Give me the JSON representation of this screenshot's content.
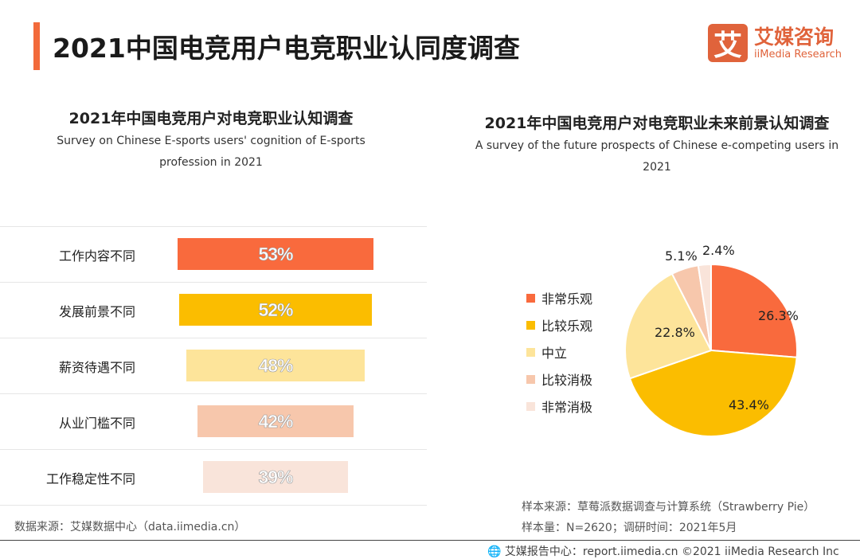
{
  "header": {
    "title": "2021中国电竞用户电竞职业认同度调查"
  },
  "logo": {
    "mark": "艾",
    "cn": "艾媒咨询",
    "en": "iiMedia Research"
  },
  "chart_data": [
    {
      "type": "bar",
      "orientation": "horizontal",
      "title": "2021年中国电竞用户对电竞职业认知调查",
      "subtitle": "Survey on Chinese E-sports users' cognition of E-sports profession in 2021",
      "categories": [
        "工作内容不同",
        "发展前景不同",
        "薪资待遇不同",
        "从业门槛不同",
        "工作稳定性不同"
      ],
      "values": [
        53,
        52,
        48,
        42,
        39
      ],
      "labels": [
        "53%",
        "52%",
        "48%",
        "42%",
        "39%"
      ],
      "colors": [
        "#f96a3d",
        "#fbbd00",
        "#fde49a",
        "#f7c7ac",
        "#f9e4da"
      ],
      "grid": true
    },
    {
      "type": "pie",
      "title": "2021年中国电竞用户对电竞职业未来前景认知调查",
      "subtitle": "A survey of the future prospects of Chinese e-competing users in 2021",
      "categories": [
        "非常乐观",
        "比较乐观",
        "中立",
        "比较消极",
        "非常消极"
      ],
      "values": [
        26.3,
        43.4,
        22.8,
        5.1,
        2.4
      ],
      "labels": [
        "26.3%",
        "43.4%",
        "22.8%",
        "5.1%",
        "2.4%"
      ],
      "colors": [
        "#f96a3d",
        "#fbbd00",
        "#fde49a",
        "#f7c7ac",
        "#f9e4da"
      ],
      "legend": "left"
    }
  ],
  "footer": {
    "source_left": "数据来源：艾媒数据中心（data.iimedia.cn）",
    "source_right": "样本来源：草莓派数据调查与计算系统（Strawberry Pie）",
    "sample": "样本量：N=2620；调研时间：2021年5月",
    "copyright": "艾媒报告中心：report.iimedia.cn ©2021  iiMedia Research  Inc"
  }
}
